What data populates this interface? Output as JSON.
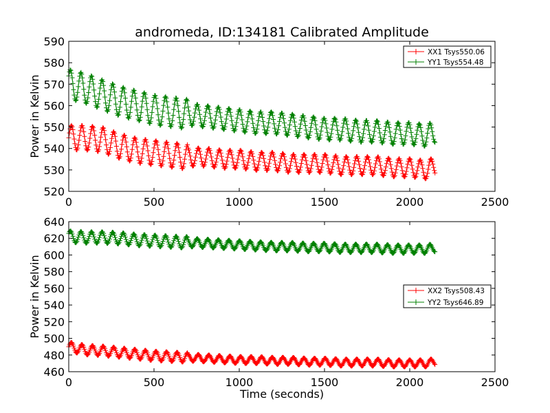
{
  "figure": {
    "title": "andromeda, ID:134181 Calibrated Amplitude"
  },
  "colors": {
    "xx": "#ff0000",
    "yy": "#008000",
    "axes": "#000000",
    "background": "#ffffff"
  },
  "chart_data": [
    {
      "type": "line",
      "title": "andromeda, ID:134181 Calibrated Amplitude",
      "xlabel": "",
      "ylabel": "Power in Kelvin",
      "xlim": [
        0,
        2500
      ],
      "ylim": [
        520,
        590
      ],
      "xticks": [
        "0",
        "500",
        "1000",
        "1500",
        "2000",
        "2500"
      ],
      "yticks": [
        "520",
        "530",
        "540",
        "550",
        "560",
        "570",
        "580",
        "590"
      ],
      "legend_position": "top-right",
      "marker": "plus",
      "series": [
        {
          "name": "XX1 Tsys550.06",
          "color": "#ff0000",
          "x": [
            0,
            100,
            200,
            300,
            400,
            500,
            600,
            700,
            800,
            900,
            1000,
            1100,
            1200,
            1300,
            1400,
            1500,
            1600,
            1700,
            1800,
            1900,
            2000,
            2100,
            2150
          ],
          "y": [
            545,
            545,
            544,
            541,
            539,
            538,
            537,
            536,
            536,
            535,
            535,
            534,
            534,
            533,
            533,
            533,
            532,
            532,
            532,
            531,
            531,
            530,
            532
          ],
          "oscillation_amplitude": 5,
          "oscillation_period_s": 62
        },
        {
          "name": "YY1 Tsys554.48",
          "color": "#008000",
          "x": [
            0,
            100,
            200,
            300,
            400,
            500,
            600,
            700,
            800,
            900,
            1000,
            1100,
            1200,
            1300,
            1400,
            1500,
            1600,
            1700,
            1800,
            1900,
            2000,
            2100,
            2150
          ],
          "y": [
            570,
            568,
            565,
            562,
            560,
            558,
            557,
            556,
            555,
            554,
            553,
            552,
            552,
            551,
            550,
            549,
            549,
            548,
            548,
            547,
            547,
            546,
            548
          ],
          "oscillation_amplitude": 6,
          "oscillation_period_s": 62
        }
      ]
    },
    {
      "type": "line",
      "title": "",
      "xlabel": "Time (seconds)",
      "ylabel": "Power in Kelvin",
      "xlim": [
        0,
        2500
      ],
      "ylim": [
        460,
        640
      ],
      "xticks": [
        "0",
        "500",
        "1000",
        "1500",
        "2000",
        "2500"
      ],
      "yticks": [
        "460",
        "480",
        "500",
        "520",
        "540",
        "560",
        "580",
        "600",
        "620",
        "640"
      ],
      "legend_position": "center-right",
      "marker": "plus",
      "series": [
        {
          "name": "XX2 Tsys508.43",
          "color": "#ff0000",
          "x": [
            0,
            100,
            200,
            300,
            400,
            500,
            600,
            700,
            800,
            900,
            1000,
            1100,
            1200,
            1300,
            1400,
            1500,
            1600,
            1700,
            1800,
            1900,
            2000,
            2100,
            2150
          ],
          "y": [
            490,
            486,
            485,
            483,
            481,
            479,
            478,
            477,
            476,
            475,
            474,
            474,
            473,
            473,
            472,
            472,
            471,
            471,
            471,
            470,
            470,
            470,
            472
          ],
          "oscillation_amplitude": 5,
          "oscillation_period_s": 62
        },
        {
          "name": "YY2 Tsys646.89",
          "color": "#008000",
          "x": [
            0,
            100,
            200,
            300,
            400,
            500,
            600,
            700,
            800,
            900,
            1000,
            1100,
            1200,
            1300,
            1400,
            1500,
            1600,
            1700,
            1800,
            1900,
            2000,
            2100,
            2150
          ],
          "y": [
            622,
            621,
            621,
            620,
            618,
            617,
            616,
            615,
            614,
            613,
            612,
            611,
            610,
            610,
            609,
            609,
            608,
            608,
            608,
            607,
            607,
            607,
            609
          ],
          "oscillation_amplitude": 6,
          "oscillation_period_s": 62
        }
      ]
    }
  ]
}
